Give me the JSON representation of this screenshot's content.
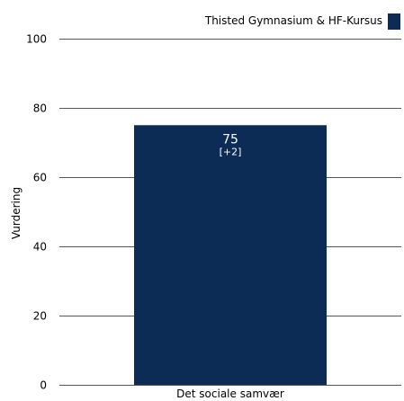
{
  "chart_data": {
    "type": "bar",
    "categories": [
      "Det sociale samvær"
    ],
    "series": [
      {
        "name": "Thisted Gymnasium & HF-Kursus",
        "values": [
          75
        ],
        "color": "#0c2c55",
        "data_labels": [
          "75"
        ],
        "change_labels": [
          "[+2]"
        ]
      }
    ],
    "title": "",
    "xlabel": "",
    "ylabel": "Vurdering",
    "ylim": [
      0,
      100
    ],
    "yticks": [
      0,
      20,
      40,
      60,
      80,
      100
    ],
    "ytick_labels": [
      "0",
      "20",
      "40",
      "60",
      "80",
      "100"
    ],
    "grid": true,
    "legend_position": "top-right"
  }
}
